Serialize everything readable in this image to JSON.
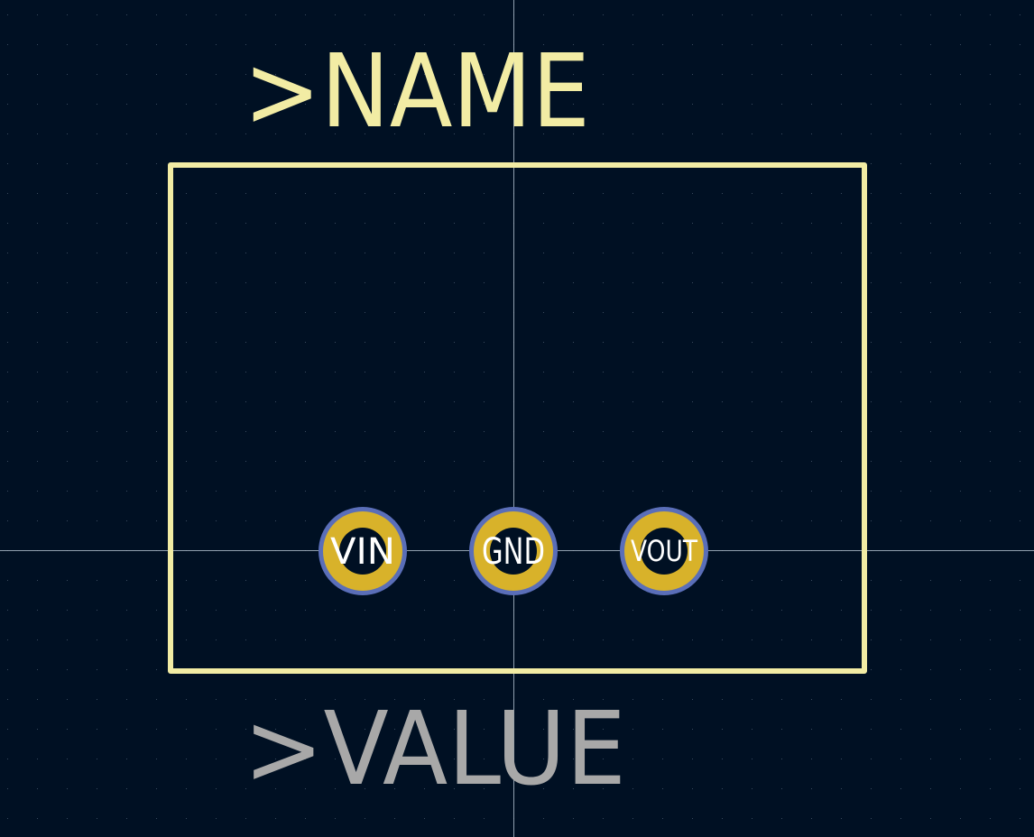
{
  "footprint": {
    "name_label": ">NAME",
    "value_label": ">VALUE",
    "pads": [
      {
        "id": "pad-vin",
        "label": "VIN"
      },
      {
        "id": "pad-gnd",
        "label": "GND"
      },
      {
        "id": "pad-vout",
        "label": "VOUT"
      }
    ]
  },
  "colors": {
    "background": "#001023",
    "grid_dot": "#3a4a5e",
    "crosshair": "#aab8c8",
    "silkscreen": "#f2eca4",
    "value_text": "#a8a8a8",
    "pad_copper": "#d8b22a",
    "pad_outline": "#5a6eb8",
    "pad_hole": "#001023",
    "pad_label": "#ffffff"
  }
}
